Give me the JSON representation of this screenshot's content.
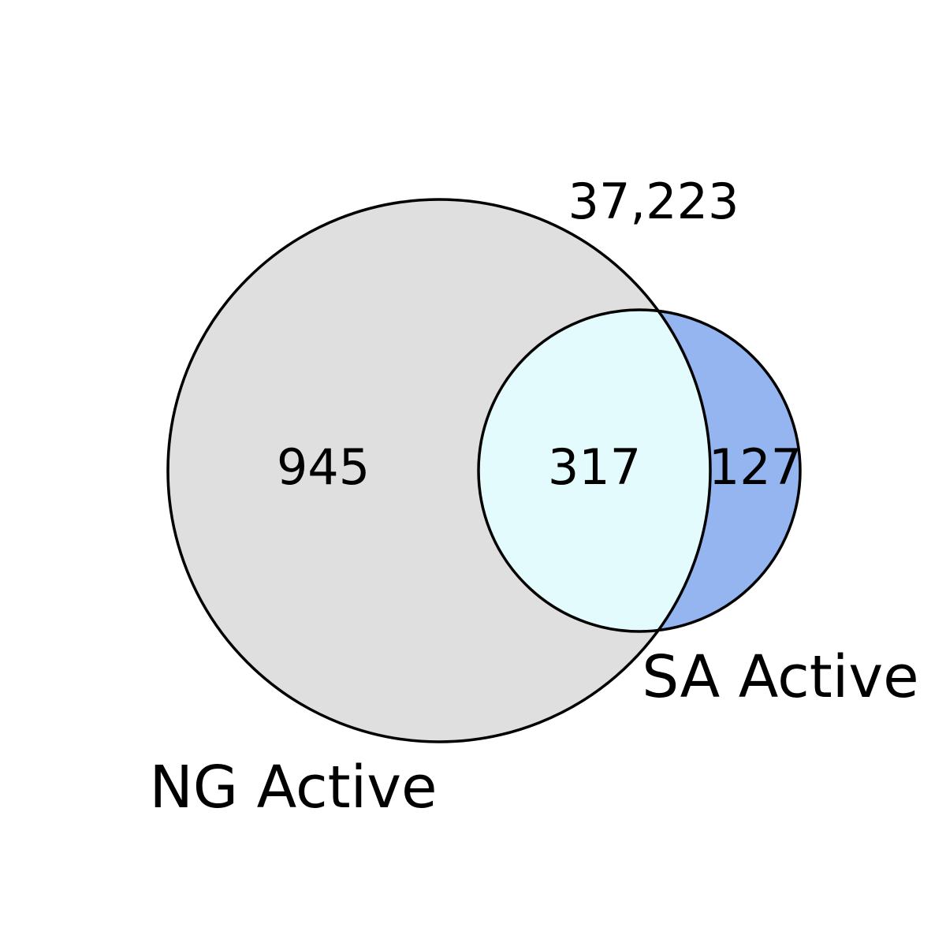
{
  "chart_data": {
    "type": "venn",
    "sets": [
      {
        "label": "NG Active",
        "only_count": "945",
        "color": "#dfdfdf"
      },
      {
        "label": "SA Active",
        "only_count": "127",
        "color": "#94b5f0"
      }
    ],
    "intersection": {
      "count": "317",
      "color": "#e3fbfd"
    },
    "outside": {
      "count": "37,223"
    },
    "outline_color": "#000000"
  }
}
